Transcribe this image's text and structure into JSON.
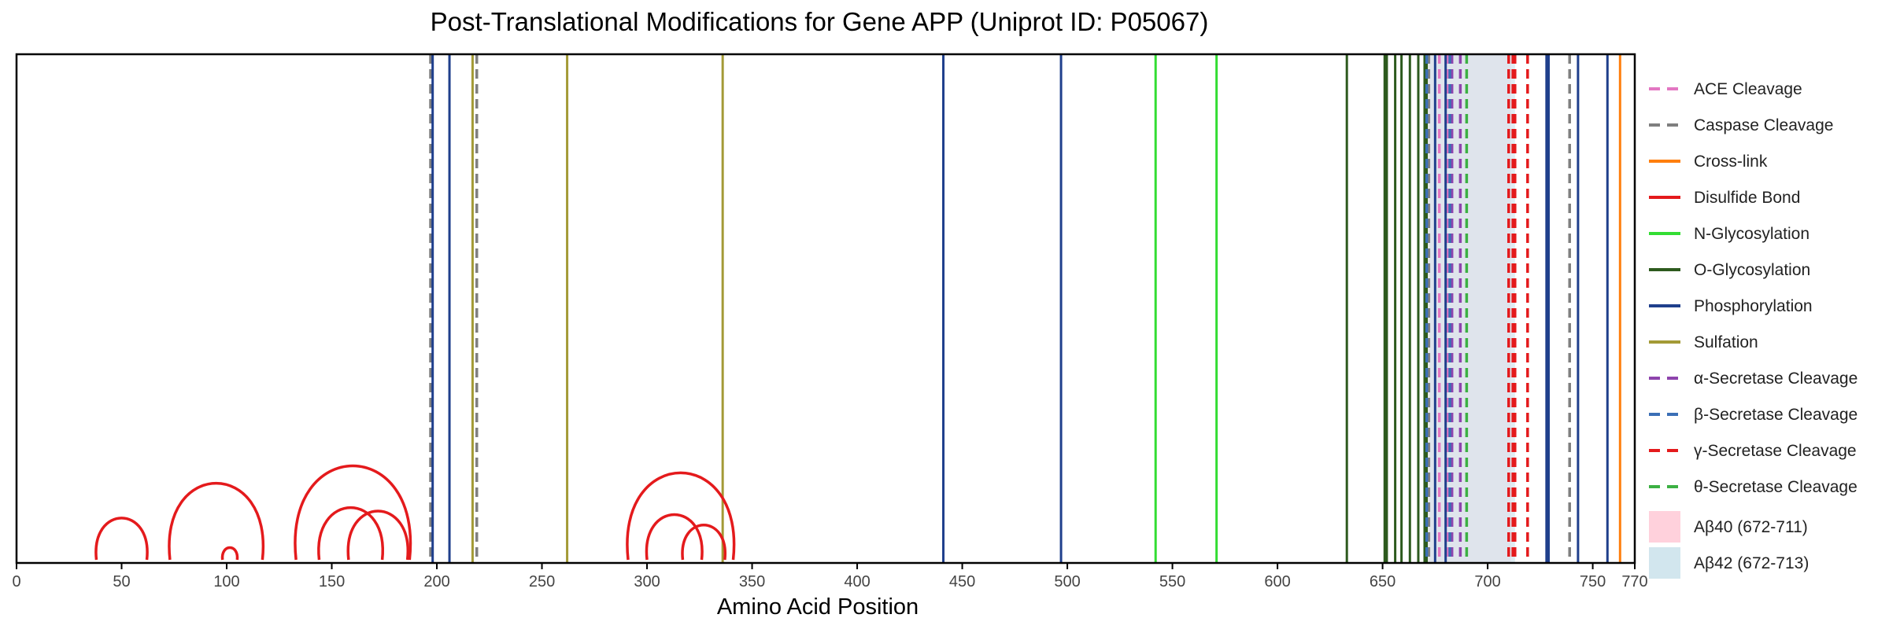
{
  "chart_data": {
    "type": "line",
    "title": "Post-Translational Modifications for Gene APP (Uniprot ID: P05067)",
    "xlabel": "Amino Acid Position",
    "ylabel": "",
    "xlim": [
      0,
      770
    ],
    "xticks": [
      0,
      50,
      100,
      150,
      200,
      250,
      300,
      350,
      400,
      450,
      500,
      550,
      600,
      650,
      700,
      750,
      770
    ],
    "grid": false,
    "legend_placement": "right",
    "series": [
      {
        "name": "ACE Cleavage",
        "style": "dashed",
        "color": "#e377c2",
        "positions": [
          677,
          681
        ]
      },
      {
        "name": "Caspase Cleavage",
        "style": "dashed",
        "color": "#7f7f7f",
        "positions": [
          197,
          219,
          672,
          739
        ]
      },
      {
        "name": "Cross-link",
        "style": "solid",
        "color": "#ff7f0e",
        "positions": [
          763
        ]
      },
      {
        "name": "Disulfide Bond",
        "style": "solid",
        "color": "#e41a1c",
        "bonds": [
          [
            38,
            62
          ],
          [
            73,
            117
          ],
          [
            98,
            105
          ],
          [
            133,
            187
          ],
          [
            144,
            174
          ],
          [
            158,
            186
          ],
          [
            291,
            341
          ],
          [
            300,
            326
          ],
          [
            317,
            337
          ]
        ]
      },
      {
        "name": "N-Glycosylation",
        "style": "solid",
        "color": "#33dd33",
        "positions": [
          542,
          571
        ]
      },
      {
        "name": "O-Glycosylation",
        "style": "solid",
        "color": "#2d5a1e",
        "positions": [
          633,
          651,
          652,
          656,
          659,
          663,
          667,
          670,
          671
        ]
      },
      {
        "name": "Phosphorylation",
        "style": "solid",
        "color": "#1f3f8c",
        "positions": [
          198,
          206,
          441,
          497,
          675,
          680,
          728,
          729,
          743,
          757
        ]
      },
      {
        "name": "Sulfation",
        "style": "solid",
        "color": "#a39a36",
        "positions": [
          217,
          262,
          336
        ]
      },
      {
        "name": "α-Secretase Cleavage",
        "style": "dashed",
        "color": "#8e44ad",
        "positions": [
          683,
          687
        ]
      },
      {
        "name": "β-Secretase Cleavage",
        "style": "dashed",
        "color": "#3b6fb6",
        "positions": [
          671,
          682
        ]
      },
      {
        "name": "γ-Secretase Cleavage",
        "style": "dashed",
        "color": "#e41a1c",
        "positions": [
          710,
          712,
          713,
          719
        ]
      },
      {
        "name": "θ-Secretase Cleavage",
        "style": "dashed",
        "color": "#3cb043",
        "positions": [
          690
        ]
      }
    ],
    "regions": [
      {
        "name": "Aβ40 (672-711)",
        "start": 672,
        "end": 711,
        "color": "#ffd1dc"
      },
      {
        "name": "Aβ42 (672-713)",
        "start": 672,
        "end": 713,
        "color": "#d2e6ee"
      }
    ]
  }
}
